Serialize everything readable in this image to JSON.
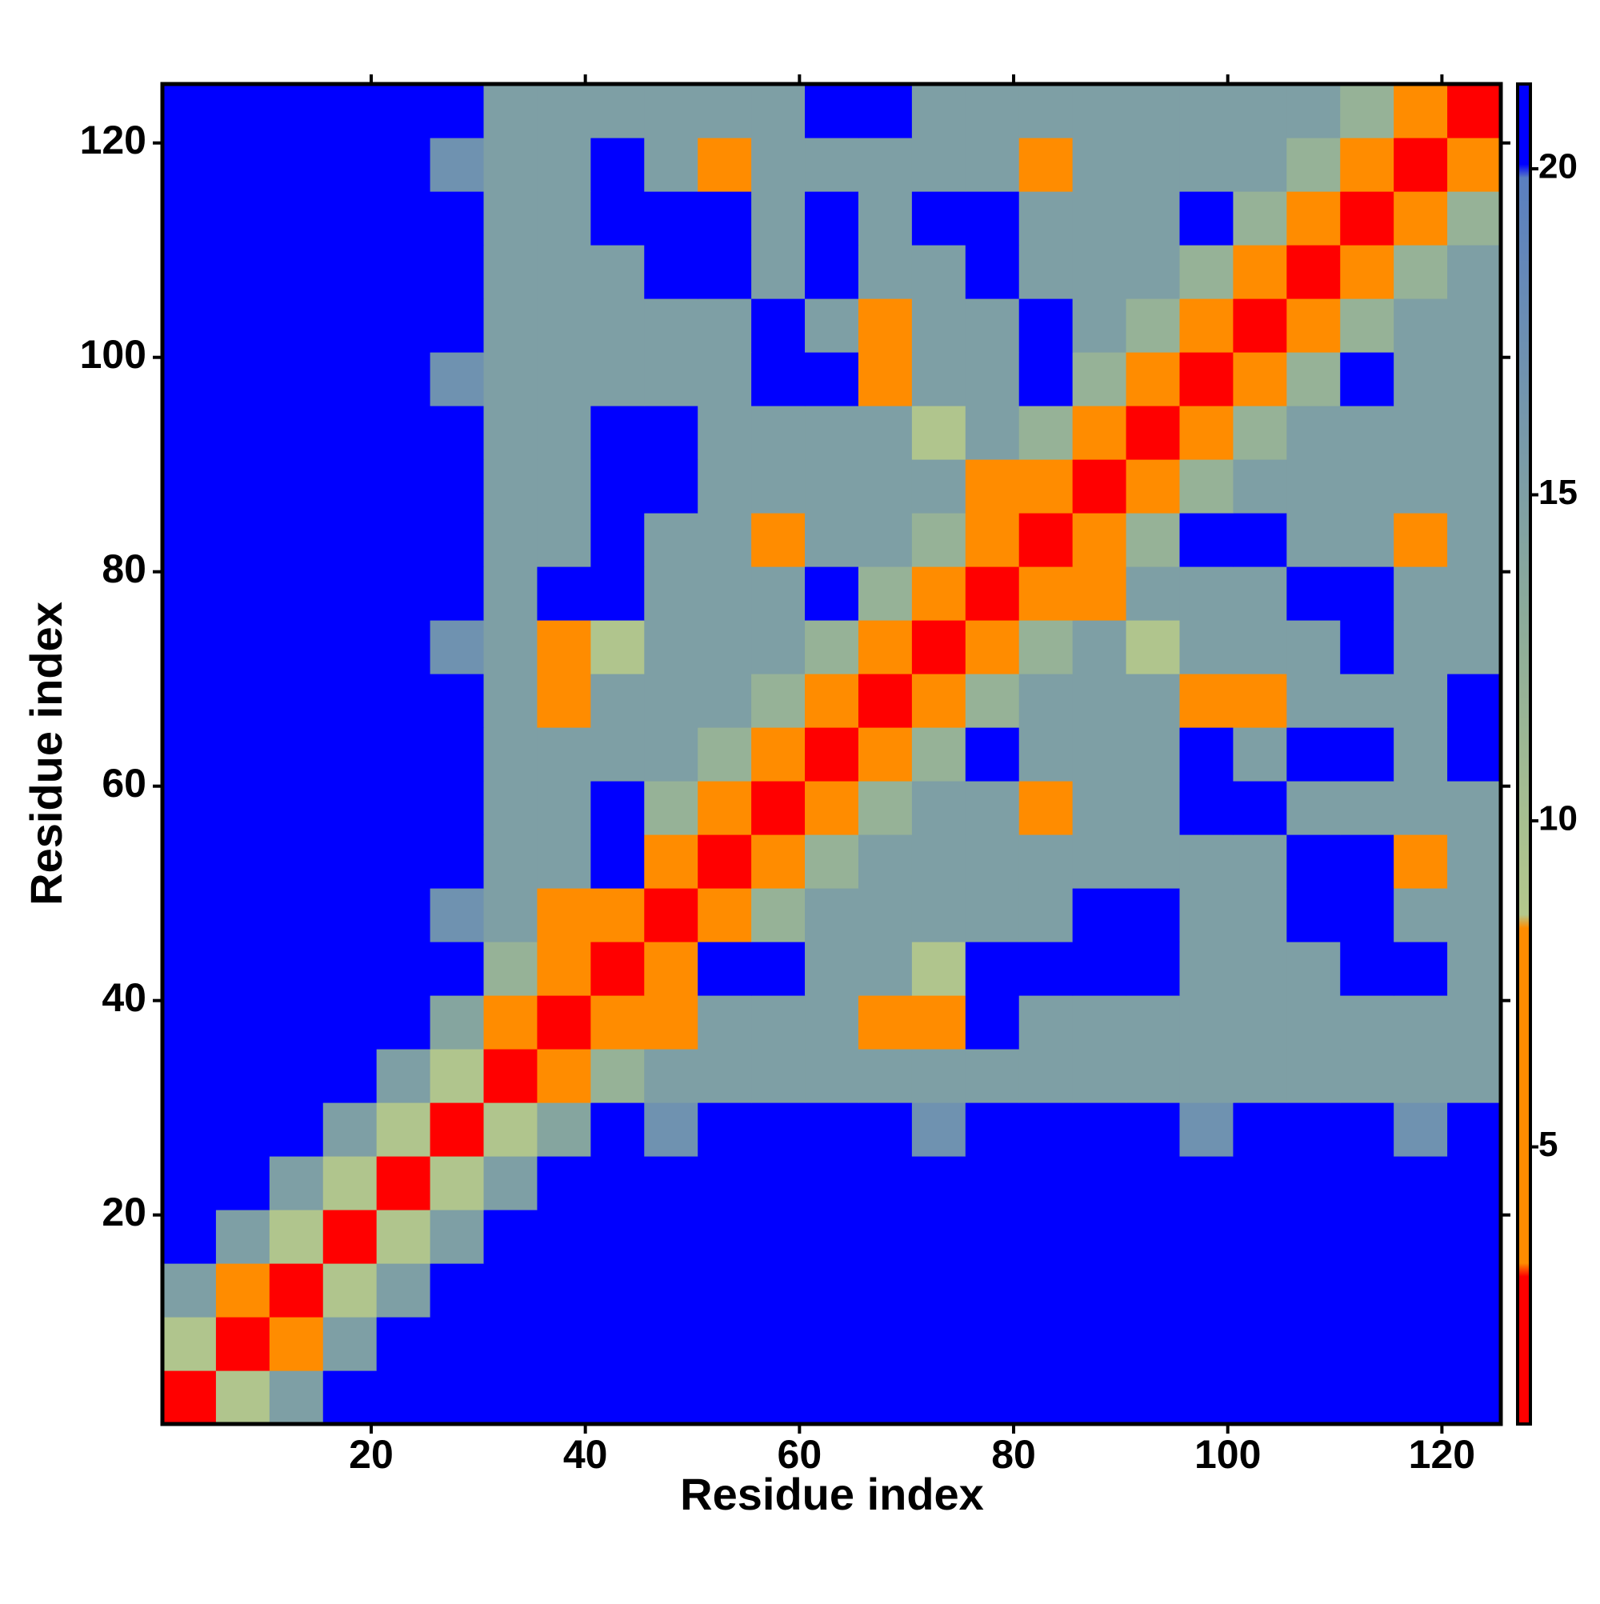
{
  "chart_data": {
    "type": "heatmap",
    "xlabel": "Residue index",
    "ylabel": "Residue index",
    "xlim": [
      0.5,
      125.5
    ],
    "ylim": [
      0.5,
      125.5
    ],
    "xticks": [
      20,
      40,
      60,
      80,
      100,
      120
    ],
    "yticks": [
      20,
      40,
      60,
      80,
      100,
      120
    ],
    "xbins": [
      0.5,
      5.5,
      10.5,
      15.5,
      20.5,
      25.5,
      30.5,
      35.5,
      40.5,
      45.5,
      50.5,
      55.5,
      60.5,
      65.5,
      70.5,
      75.5,
      80.5,
      85.5,
      90.5,
      95.5,
      100.5,
      105.5,
      110.5,
      115.5,
      120.5,
      125.5
    ],
    "ybins": [
      0.5,
      5.5,
      10.5,
      15.5,
      20.5,
      25.5,
      30.5,
      35.5,
      40.5,
      45.5,
      50.5,
      55.5,
      60.5,
      65.5,
      70.5,
      75.5,
      80.5,
      85.5,
      90.5,
      95.5,
      100.5,
      105.5,
      110.5,
      115.5,
      120.5,
      125.5
    ],
    "clim": [
      0.75,
      21.3
    ],
    "cticks": [
      5,
      10,
      15,
      20
    ],
    "colorscale": [
      [
        0,
        "#ff0000"
      ],
      [
        0.11,
        "#ff0000"
      ],
      [
        0.12,
        "#ff8c00"
      ],
      [
        0.37,
        "#ff8c00"
      ],
      [
        0.38,
        "#b4c88c"
      ],
      [
        0.6,
        "#8cab9a"
      ],
      [
        0.93,
        "#5a7fc0"
      ],
      [
        0.94,
        "#0000ff"
      ],
      [
        1,
        "#0000ff"
      ]
    ],
    "values": [
      [
        3,
        9,
        15,
        21,
        21,
        21,
        21,
        21,
        21,
        21,
        21,
        21,
        21,
        21,
        21,
        21,
        21,
        21,
        21,
        21,
        21,
        21,
        21,
        21,
        21
      ],
      [
        9,
        3,
        7,
        15,
        21,
        21,
        21,
        21,
        21,
        21,
        21,
        21,
        21,
        21,
        21,
        21,
        21,
        21,
        21,
        21,
        21,
        21,
        21,
        21,
        21
      ],
      [
        15,
        7,
        3,
        9,
        15,
        21,
        21,
        21,
        21,
        21,
        21,
        21,
        21,
        21,
        21,
        21,
        21,
        21,
        21,
        21,
        21,
        21,
        21,
        21,
        21
      ],
      [
        21,
        15,
        9,
        3,
        9,
        15,
        21,
        21,
        21,
        21,
        21,
        21,
        21,
        21,
        21,
        21,
        21,
        21,
        21,
        21,
        21,
        21,
        21,
        21,
        21
      ],
      [
        21,
        21,
        15,
        9,
        3,
        9,
        15,
        21,
        21,
        21,
        21,
        21,
        21,
        21,
        21,
        21,
        21,
        21,
        21,
        21,
        21,
        21,
        21,
        21,
        21
      ],
      [
        21,
        21,
        21,
        15,
        9,
        3,
        9,
        14,
        21,
        17,
        21,
        21,
        21,
        21,
        17,
        21,
        21,
        21,
        21,
        17,
        21,
        21,
        21,
        17,
        21
      ],
      [
        21,
        21,
        21,
        21,
        15,
        9,
        3,
        8,
        12,
        15,
        15,
        15,
        15,
        15,
        15,
        15,
        15,
        15,
        15,
        15,
        15,
        15,
        15,
        15,
        15
      ],
      [
        21,
        21,
        21,
        21,
        21,
        14,
        8,
        3,
        8,
        6,
        15,
        15,
        15,
        6,
        6,
        21,
        15,
        15,
        15,
        15,
        15,
        15,
        15,
        15,
        15
      ],
      [
        21,
        21,
        21,
        21,
        21,
        21,
        12,
        8,
        3,
        8,
        21,
        21,
        15,
        15,
        9,
        21,
        21,
        21,
        21,
        15,
        15,
        15,
        21,
        21,
        15
      ],
      [
        21,
        21,
        21,
        21,
        21,
        17,
        15,
        6,
        8,
        3,
        8,
        12,
        15,
        15,
        15,
        15,
        15,
        21,
        21,
        15,
        15,
        21,
        21,
        15,
        15
      ],
      [
        21,
        21,
        21,
        21,
        21,
        21,
        15,
        15,
        21,
        8,
        3,
        8,
        12,
        15,
        15,
        15,
        15,
        15,
        15,
        15,
        15,
        21,
        21,
        6,
        15
      ],
      [
        21,
        21,
        21,
        21,
        21,
        21,
        15,
        15,
        21,
        12,
        8,
        3,
        6,
        12,
        15,
        15,
        6,
        15,
        15,
        21,
        21,
        15,
        15,
        15,
        15
      ],
      [
        21,
        21,
        21,
        21,
        21,
        21,
        15,
        15,
        15,
        15,
        12,
        6,
        3,
        8,
        12,
        21,
        15,
        15,
        15,
        21,
        15,
        21,
        21,
        15,
        21
      ],
      [
        21,
        21,
        21,
        21,
        21,
        21,
        15,
        6,
        15,
        15,
        15,
        12,
        8,
        3,
        8,
        12,
        15,
        15,
        15,
        6,
        6,
        15,
        15,
        15,
        21
      ],
      [
        21,
        21,
        21,
        21,
        21,
        17,
        15,
        6,
        9,
        15,
        15,
        15,
        12,
        8,
        3,
        8,
        12,
        15,
        9,
        15,
        15,
        15,
        21,
        15,
        15
      ],
      [
        21,
        21,
        21,
        21,
        21,
        21,
        15,
        21,
        21,
        15,
        15,
        15,
        21,
        12,
        8,
        3,
        8,
        6,
        15,
        15,
        15,
        21,
        21,
        15,
        15
      ],
      [
        21,
        21,
        21,
        21,
        21,
        21,
        15,
        15,
        21,
        15,
        15,
        6,
        15,
        15,
        12,
        8,
        3,
        8,
        12,
        21,
        21,
        15,
        15,
        6,
        15
      ],
      [
        21,
        21,
        21,
        21,
        21,
        21,
        15,
        15,
        21,
        21,
        15,
        15,
        15,
        15,
        15,
        6,
        8,
        3,
        8,
        12,
        15,
        15,
        15,
        15,
        15
      ],
      [
        21,
        21,
        21,
        21,
        21,
        21,
        15,
        15,
        21,
        21,
        15,
        15,
        15,
        15,
        9,
        15,
        12,
        8,
        3,
        8,
        12,
        15,
        15,
        15,
        15
      ],
      [
        21,
        21,
        21,
        21,
        21,
        17,
        15,
        15,
        15,
        15,
        15,
        21,
        21,
        6,
        15,
        15,
        21,
        12,
        8,
        3,
        8,
        12,
        21,
        15,
        15
      ],
      [
        21,
        21,
        21,
        21,
        21,
        21,
        15,
        15,
        15,
        15,
        15,
        21,
        15,
        6,
        15,
        15,
        21,
        15,
        12,
        8,
        3,
        6,
        12,
        15,
        15
      ],
      [
        21,
        21,
        21,
        21,
        21,
        21,
        15,
        15,
        15,
        21,
        21,
        15,
        21,
        15,
        15,
        21,
        15,
        15,
        15,
        12,
        6,
        3,
        8,
        12,
        15
      ],
      [
        21,
        21,
        21,
        21,
        21,
        21,
        15,
        15,
        21,
        21,
        21,
        15,
        21,
        15,
        21,
        21,
        15,
        15,
        15,
        21,
        12,
        8,
        3,
        8,
        12
      ],
      [
        21,
        21,
        21,
        21,
        21,
        17,
        15,
        15,
        21,
        15,
        6,
        15,
        15,
        15,
        15,
        15,
        6,
        15,
        15,
        15,
        15,
        12,
        8,
        3,
        8
      ],
      [
        21,
        21,
        21,
        21,
        21,
        21,
        15,
        15,
        15,
        15,
        15,
        15,
        21,
        21,
        15,
        15,
        15,
        15,
        15,
        15,
        15,
        15,
        12,
        8,
        3
      ]
    ]
  }
}
